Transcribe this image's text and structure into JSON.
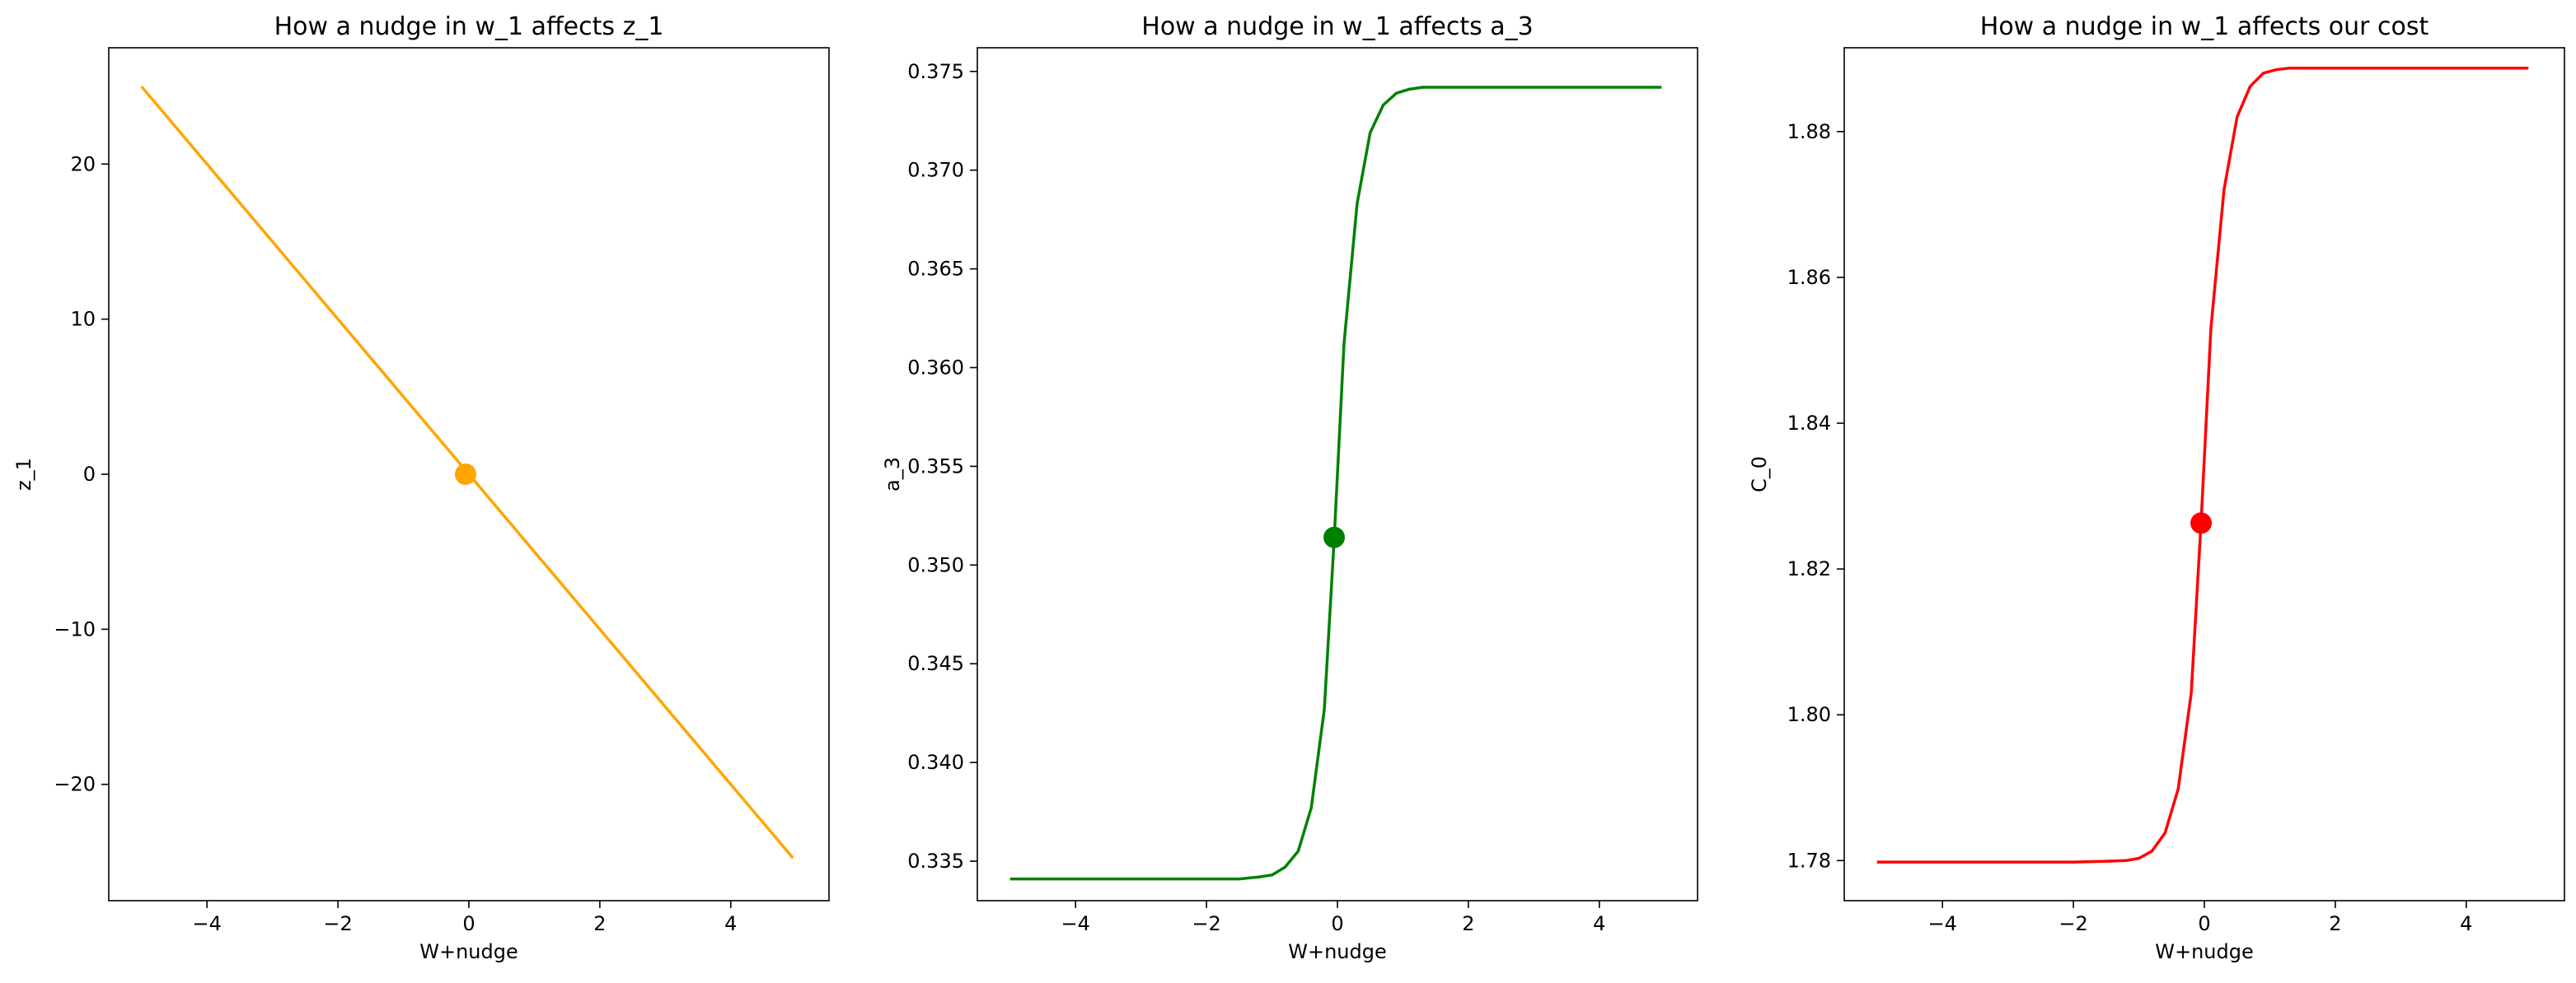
{
  "chart_data": [
    {
      "type": "line",
      "title": "How a nudge in w_1 affects z_1",
      "xlabel": "W+nudge",
      "ylabel": "z_1",
      "xlim": [
        -5.5,
        5.5
      ],
      "ylim": [
        -27.5,
        27.5
      ],
      "xticks": [
        -4,
        -2,
        0,
        2,
        4
      ],
      "yticks": [
        -20,
        -10,
        0,
        10,
        20
      ],
      "xtick_labels": [
        "−4",
        "−2",
        "0",
        "2",
        "4"
      ],
      "ytick_labels": [
        "−20",
        "−10",
        "0",
        "10",
        "20"
      ],
      "grid": false,
      "color": "#ffa500",
      "series": [
        {
          "x": [
            -5,
            4.95
          ],
          "y": [
            25,
            -24.75
          ]
        }
      ],
      "marker": {
        "x": -0.05,
        "y": 0.0,
        "color": "#ffa500"
      }
    },
    {
      "type": "line",
      "title": "How a nudge in w_1 affects a_3",
      "xlabel": "W+nudge",
      "ylabel": "a_3",
      "xlim": [
        -5.5,
        5.5
      ],
      "ylim": [
        0.333,
        0.3762
      ],
      "xticks": [
        -4,
        -2,
        0,
        2,
        4
      ],
      "yticks": [
        0.335,
        0.34,
        0.345,
        0.35,
        0.355,
        0.36,
        0.365,
        0.37,
        0.375
      ],
      "xtick_labels": [
        "−4",
        "−2",
        "0",
        "2",
        "4"
      ],
      "ytick_labels": [
        "0.335",
        "0.340",
        "0.345",
        "0.350",
        "0.355",
        "0.360",
        "0.365",
        "0.370",
        "0.375"
      ],
      "grid": false,
      "color": "#008000",
      "series": [
        {
          "x": [
            -5,
            -2,
            -1.5,
            -1.2,
            -1.0,
            -0.8,
            -0.6,
            -0.4,
            -0.2,
            -0.05,
            0.1,
            0.3,
            0.5,
            0.7,
            0.9,
            1.1,
            1.3,
            1.6,
            2.0,
            4.95
          ],
          "y": [
            0.3341,
            0.3341,
            0.3341,
            0.3342,
            0.3343,
            0.3347,
            0.3355,
            0.3377,
            0.3427,
            0.3513,
            0.3612,
            0.3683,
            0.3719,
            0.3733,
            0.3739,
            0.3741,
            0.3742,
            0.3742,
            0.3742,
            0.3742
          ]
        }
      ],
      "marker": {
        "x": -0.05,
        "y": 0.3514,
        "color": "#008000"
      }
    },
    {
      "type": "line",
      "title": "How a nudge in w_1 affects our cost",
      "xlabel": "W+nudge",
      "ylabel": "C_0",
      "xlim": [
        -5.5,
        5.5
      ],
      "ylim": [
        1.7745,
        1.8915
      ],
      "xticks": [
        -4,
        -2,
        0,
        2,
        4
      ],
      "yticks": [
        1.78,
        1.8,
        1.82,
        1.84,
        1.86,
        1.88
      ],
      "xtick_labels": [
        "−4",
        "−2",
        "0",
        "2",
        "4"
      ],
      "ytick_labels": [
        "1.78",
        "1.80",
        "1.82",
        "1.84",
        "1.86",
        "1.88"
      ],
      "grid": false,
      "color": "#ff0000",
      "series": [
        {
          "x": [
            -5,
            -2,
            -1.5,
            -1.2,
            -1.0,
            -0.8,
            -0.6,
            -0.4,
            -0.2,
            -0.05,
            0.1,
            0.3,
            0.5,
            0.7,
            0.9,
            1.1,
            1.3,
            1.6,
            2.0,
            4.95
          ],
          "y": [
            1.7798,
            1.7798,
            1.7799,
            1.78,
            1.7803,
            1.7813,
            1.7838,
            1.7898,
            1.803,
            1.8264,
            1.853,
            1.872,
            1.882,
            1.8862,
            1.888,
            1.8885,
            1.8887,
            1.8887,
            1.8887,
            1.8887
          ]
        }
      ],
      "marker": {
        "x": -0.05,
        "y": 1.8263,
        "color": "#ff0000"
      }
    }
  ]
}
